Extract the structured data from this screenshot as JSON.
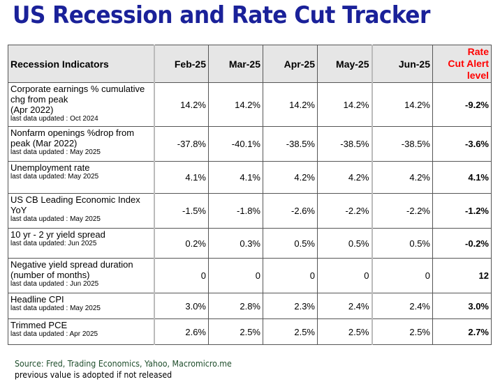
{
  "title": "US Recession and Rate Cut Tracker",
  "table": {
    "headers": {
      "indicator": "Recession Indicators",
      "months": [
        "Feb-25",
        "Mar-25",
        "Apr-25",
        "May-25",
        "Jun-25"
      ],
      "alert_lines": [
        "Rate",
        "Cut Alert",
        "level"
      ]
    },
    "rows": [
      {
        "name_lines": [
          "Corporate earnings % cumulative",
          "chg from peak",
          "(Apr 2022)"
        ],
        "updated": "last data updated : Oct 2024",
        "values": [
          "14.2%",
          "14.2%",
          "14.2%",
          "14.2%",
          "14.2%"
        ],
        "alert": "-9.2%"
      },
      {
        "name_lines": [
          "Nonfarm openings %drop from",
          "peak (Mar 2022)"
        ],
        "updated": "last data updated : May 2025",
        "values": [
          "-37.8%",
          "-40.1%",
          "-38.5%",
          "-38.5%",
          "-38.5%"
        ],
        "alert": "-3.6%"
      },
      {
        "name_lines": [
          "Unemployment rate"
        ],
        "updated": "last data updated: May 2025",
        "values": [
          "4.1%",
          "4.1%",
          "4.2%",
          "4.2%",
          "4.2%"
        ],
        "alert": "4.1%"
      },
      {
        "name_lines": [
          "US CB Leading Economic Index",
          "YoY"
        ],
        "updated": "last data updated : May 2025",
        "values": [
          "-1.5%",
          "-1.8%",
          "-2.6%",
          "-2.2%",
          "-2.2%"
        ],
        "alert": "-1.2%"
      },
      {
        "name_lines": [
          "10 yr - 2 yr yield spread"
        ],
        "updated": "last data updated: Jun 2025",
        "values": [
          "0.2%",
          "0.3%",
          "0.5%",
          "0.5%",
          "0.5%"
        ],
        "alert": "-0.2%"
      },
      {
        "name_lines": [
          "Negative yield spread duration",
          "(number of  months)"
        ],
        "updated": "last data updated : Jun 2025",
        "values": [
          "0",
          "0",
          "0",
          "0",
          "0"
        ],
        "alert": "12"
      },
      {
        "name_lines": [
          "Headline CPI"
        ],
        "updated": "last data updated : May 2025",
        "values": [
          "3.0%",
          "2.8%",
          "2.3%",
          "2.4%",
          "2.4%"
        ],
        "alert": "3.0%"
      },
      {
        "name_lines": [
          "Trimmed PCE"
        ],
        "updated": "last data updated : Apr 2025",
        "values": [
          "2.6%",
          "2.5%",
          "2.5%",
          "2.5%",
          "2.5%"
        ],
        "alert": "2.7%"
      }
    ]
  },
  "footer": {
    "source": "Source: Fred, Trading Economics, Yahoo, Macromicro.me",
    "note": "previous value is adopted if not released"
  },
  "colors": {
    "title": "#1a2199",
    "alert": "#ff0000",
    "source": "#1e4d2b",
    "header_bg": "#e6e6e6"
  }
}
